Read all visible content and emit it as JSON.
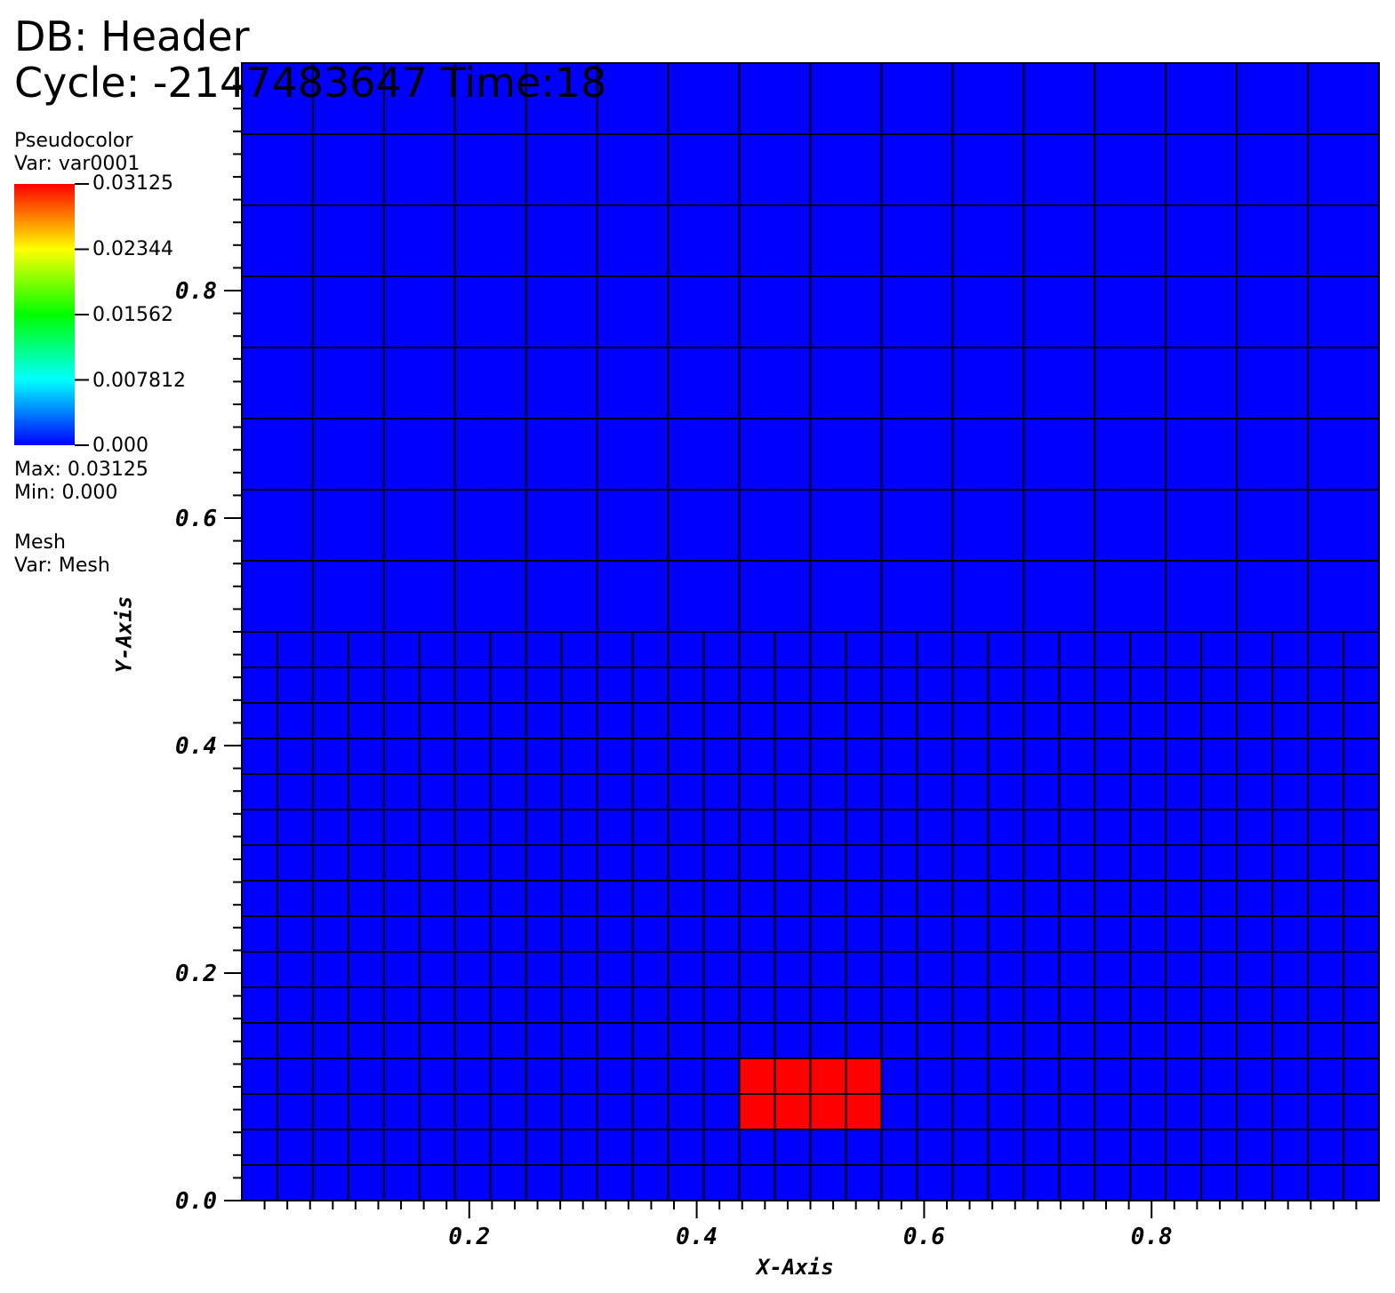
{
  "header": {
    "db": "DB: Header",
    "cycle": "Cycle: -2147483647 Time:18"
  },
  "legend": {
    "plot1_type": "Pseudocolor",
    "plot1_var": "Var: var0001",
    "colorbar_labels": [
      "0.03125",
      "0.02344",
      "0.01562",
      "0.007812",
      "0.000"
    ],
    "max": "Max:  0.03125",
    "min": "Min:  0.000",
    "plot2_type": "Mesh",
    "plot2_var": "Var: Mesh"
  },
  "colors": {
    "low": "#0000ff",
    "high": "#ff0000",
    "mesh_line": "#000000",
    "colormap": [
      "#0000ff",
      "#00ffff",
      "#00ff00",
      "#ffff00",
      "#ff0000"
    ]
  },
  "chart_data": {
    "type": "heatmap",
    "xlabel": "X-Axis",
    "ylabel": "Y-Axis",
    "xlim": [
      0,
      1
    ],
    "ylim": [
      0,
      1
    ],
    "x_ticks": [
      "0.2",
      "0.4",
      "0.6",
      "0.8"
    ],
    "y_ticks": [
      "0.0",
      "0.2",
      "0.4",
      "0.6",
      "0.8"
    ],
    "value_range": [
      0,
      0.03125
    ],
    "background_value": 0,
    "fine_mesh": {
      "y_range": [
        0,
        0.5
      ],
      "dx": 0.03125,
      "dy": 0.03125
    },
    "coarse_mesh": {
      "y_range": [
        0.5,
        1.0
      ],
      "dx": 0.0625,
      "dy": 0.0625
    },
    "highlighted_cells": [
      {
        "x": [
          0.4375,
          0.5625
        ],
        "y": [
          0.0625,
          0.125
        ],
        "value": 0.03125
      }
    ]
  }
}
